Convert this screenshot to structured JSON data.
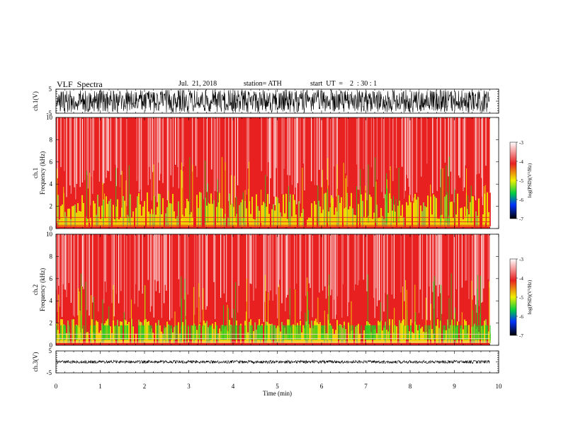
{
  "header": {
    "title": "VLF  Spectra",
    "date": "Jul.  21, 2018",
    "station": "station= ATH",
    "start": "start  UT  =    2  : 30 : 1"
  },
  "chart_data": [
    {
      "type": "line",
      "panel": "ch1-waveform",
      "ylabel": "ch.1(V)",
      "ylim": [
        -5,
        5
      ],
      "yticks": [
        "5",
        "-5"
      ],
      "xlim": [
        0,
        10
      ]
    },
    {
      "type": "heatmap",
      "panel": "ch1-spectrogram",
      "ylabel": "ch.1\nFrequency (kHz)",
      "ylim": [
        0,
        10
      ],
      "yticks": [
        "0",
        "2",
        "4",
        "6",
        "8",
        "10"
      ],
      "xlim": [
        0,
        9.8
      ],
      "colorbar": {
        "label": "log(PSD)(V²/Hz)",
        "range": [
          -7,
          -3
        ],
        "ticks": [
          "-3",
          "-4",
          "-5",
          "-6",
          "-7"
        ]
      }
    },
    {
      "type": "heatmap",
      "panel": "ch2-spectrogram",
      "ylabel": "ch.2\nFrequency (kHz)",
      "ylim": [
        0,
        10
      ],
      "yticks": [
        "0",
        "2",
        "4",
        "6",
        "8",
        "10"
      ],
      "xlim": [
        0,
        9.8
      ],
      "colorbar": {
        "label": "log(PSD)(V²/Hz)",
        "range": [
          -7,
          -3
        ],
        "ticks": [
          "-3",
          "-4",
          "-5",
          "-6",
          "-7"
        ]
      }
    },
    {
      "type": "line",
      "panel": "ch3-waveform",
      "ylabel": "ch.3(V)",
      "ylim": [
        -5,
        5
      ],
      "yticks": [
        "5",
        "-5"
      ],
      "xlim": [
        0,
        10
      ],
      "xlabel": "Time  (min)",
      "xticks": [
        "0",
        "1",
        "2",
        "3",
        "4",
        "5",
        "6",
        "7",
        "8",
        "9",
        "10"
      ]
    }
  ],
  "colors": {
    "bg": "#ffffff",
    "red": "#e82020",
    "light_red": "#f6b0b0",
    "yellow": "#f0f000",
    "green": "#22cc22",
    "blue": "#0044ff",
    "black": "#000000"
  }
}
